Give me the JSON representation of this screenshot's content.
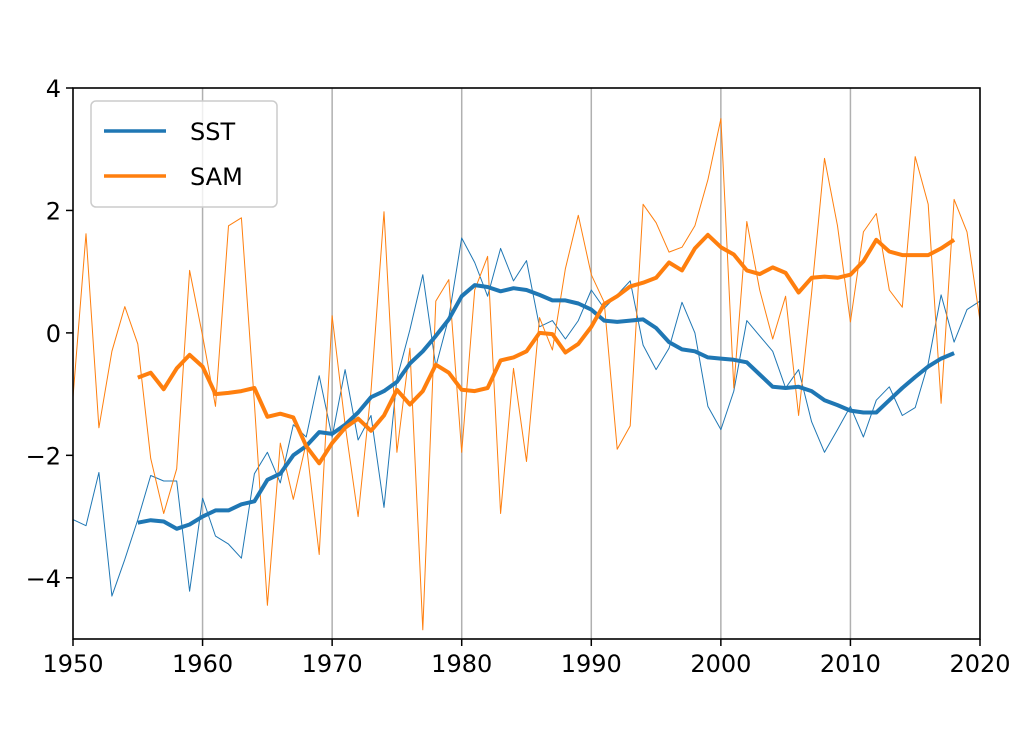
{
  "chart_data": {
    "type": "line",
    "title": "",
    "xlabel": "",
    "ylabel": "",
    "xlim": [
      1950,
      2020
    ],
    "ylim": [
      -5,
      4
    ],
    "xticks": [
      1950,
      1960,
      1970,
      1980,
      1990,
      2000,
      2010,
      2020
    ],
    "xtick_labels": [
      "1950",
      "1960",
      "1970",
      "1980",
      "1990",
      "2000",
      "2010",
      "2020"
    ],
    "yticks": [
      -4,
      -2,
      0,
      2,
      4
    ],
    "ytick_labels": [
      "−4",
      "−2",
      "0",
      "2",
      "4"
    ],
    "grid": "vertical lines at x ticks",
    "legend": {
      "position": "top-left",
      "entries": [
        "SST",
        "SAM"
      ]
    },
    "colors": {
      "SST": "#1f77b4",
      "SAM": "#ff7f0e"
    },
    "series": [
      {
        "name": "SST raw",
        "color": "#1f77b4",
        "start_year": 1950,
        "values": [
          -3.05,
          -3.15,
          -2.28,
          -4.3,
          -3.7,
          -3.05,
          -2.33,
          -2.42,
          -2.42,
          -4.22,
          -2.7,
          -3.32,
          -3.45,
          -3.68,
          -2.3,
          -1.95,
          -2.45,
          -1.5,
          -1.7,
          -0.7,
          -1.7,
          -0.6,
          -1.75,
          -1.35,
          -2.85,
          -0.75,
          0.05,
          0.95,
          -0.55,
          0.25,
          1.55,
          1.15,
          0.6,
          1.38,
          0.85,
          1.18,
          0.1,
          0.2,
          -0.1,
          0.2,
          0.7,
          0.4,
          0.62,
          0.85,
          -0.2,
          -0.6,
          -0.25,
          0.5,
          0.0,
          -1.2,
          -1.58,
          -0.95,
          0.2,
          -0.05,
          -0.3,
          -0.9,
          -0.6,
          -1.45,
          -1.95,
          -1.58,
          -1.2,
          -1.7,
          -1.1,
          -0.88,
          -1.35,
          -1.22,
          -0.5,
          0.62,
          -0.15,
          0.38,
          0.52
        ]
      },
      {
        "name": "SAM raw",
        "color": "#ff7f0e",
        "start_year": 1950,
        "values": [
          -1.05,
          1.62,
          -1.55,
          -0.3,
          0.43,
          -0.18,
          -2.05,
          -2.95,
          -2.22,
          1.02,
          -0.05,
          -1.2,
          1.75,
          1.88,
          -1.15,
          -4.45,
          -1.8,
          -2.72,
          -1.8,
          -3.62,
          0.28,
          -1.5,
          -3.0,
          -0.95,
          1.98,
          -1.95,
          -0.25,
          -4.85,
          0.52,
          0.87,
          -1.95,
          0.7,
          1.25,
          -2.95,
          -0.58,
          -2.1,
          0.25,
          -0.28,
          1.05,
          1.92,
          0.95,
          0.5,
          -1.9,
          -1.52,
          2.1,
          1.8,
          1.32,
          1.4,
          1.75,
          2.5,
          3.5,
          -0.9,
          1.82,
          0.7,
          -0.1,
          0.6,
          -1.35,
          0.65,
          2.85,
          1.75,
          0.18,
          1.65,
          1.95,
          0.7,
          0.42,
          2.88,
          2.1,
          -1.15,
          2.18,
          1.65,
          0.2
        ]
      },
      {
        "name": "SST",
        "color": "#1f77b4",
        "start_year": 1955,
        "smoothed": true,
        "values": [
          -3.1,
          -3.06,
          -3.08,
          -3.2,
          -3.13,
          -3.0,
          -2.9,
          -2.9,
          -2.8,
          -2.75,
          -2.4,
          -2.3,
          -2.0,
          -1.85,
          -1.62,
          -1.65,
          -1.5,
          -1.3,
          -1.05,
          -0.95,
          -0.8,
          -0.5,
          -0.3,
          -0.05,
          0.22,
          0.6,
          0.78,
          0.75,
          0.68,
          0.73,
          0.7,
          0.62,
          0.53,
          0.53,
          0.48,
          0.38,
          0.2,
          0.18,
          0.2,
          0.22,
          0.08,
          -0.15,
          -0.27,
          -0.3,
          -0.4,
          -0.42,
          -0.44,
          -0.48,
          -0.68,
          -0.88,
          -0.9,
          -0.88,
          -0.95,
          -1.1,
          -1.18,
          -1.27,
          -1.3,
          -1.3,
          -1.1,
          -0.9,
          -0.72,
          -0.55,
          -0.42,
          -0.33
        ]
      },
      {
        "name": "SAM",
        "color": "#ff7f0e",
        "start_year": 1955,
        "smoothed": true,
        "values": [
          -0.73,
          -0.65,
          -0.92,
          -0.58,
          -0.36,
          -0.55,
          -1.0,
          -0.98,
          -0.95,
          -0.9,
          -1.37,
          -1.32,
          -1.38,
          -1.85,
          -2.13,
          -1.8,
          -1.55,
          -1.4,
          -1.6,
          -1.35,
          -0.93,
          -1.17,
          -0.95,
          -0.52,
          -0.65,
          -0.93,
          -0.95,
          -0.9,
          -0.45,
          -0.4,
          -0.3,
          0.0,
          -0.02,
          -0.32,
          -0.18,
          0.1,
          0.47,
          0.6,
          0.76,
          0.82,
          0.9,
          1.15,
          1.02,
          1.38,
          1.6,
          1.4,
          1.28,
          1.02,
          0.96,
          1.07,
          0.98,
          0.66,
          0.9,
          0.92,
          0.9,
          0.95,
          1.17,
          1.52,
          1.33,
          1.27,
          1.27,
          1.27,
          1.38,
          1.52
        ]
      }
    ]
  }
}
